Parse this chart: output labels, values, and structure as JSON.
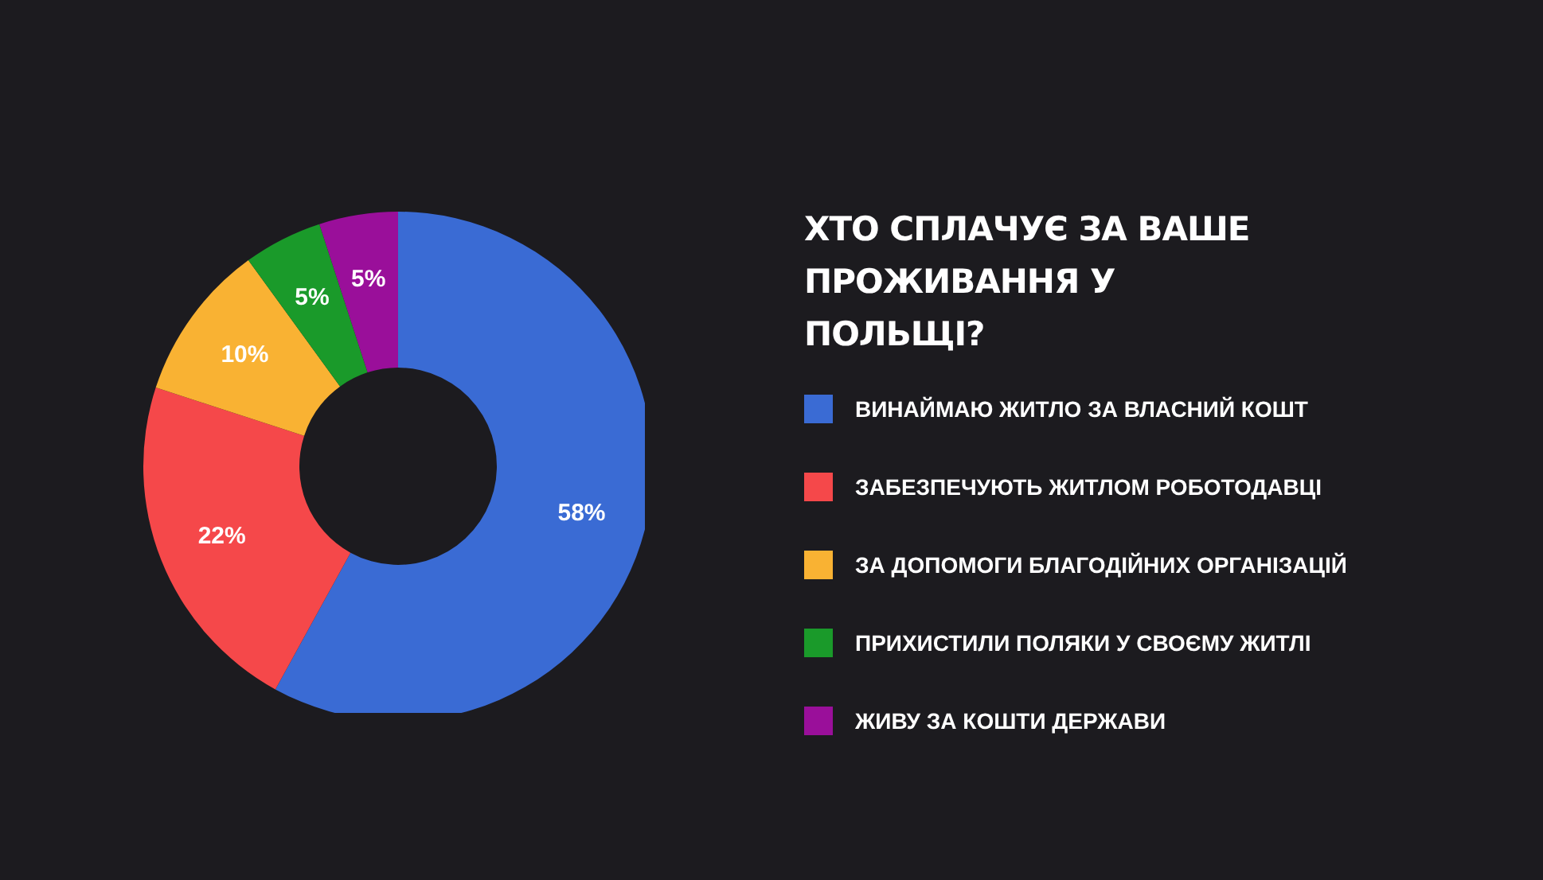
{
  "chart_data": {
    "type": "donut",
    "title": "ХТО СПЛАЧУЄ ЗА ВАШЕ ПРОЖИВАННЯ У ПОЛЬЩІ?",
    "categories": [
      "ВИНАЙМАЮ ЖИТЛО ЗА ВЛАСНИЙ КОШТ",
      "ЗАБЕЗПЕЧУЮТЬ ЖИТЛОМ РОБОТОДАВЦІ",
      "ЗА ДОПОМОГИ БЛАГОДІЙНИХ ОРГАНІЗАЦІЙ",
      "ПРИХИСТИЛИ ПОЛЯКИ У СВОЄМУ ЖИТЛІ",
      "ЖИВУ ЗА КОШТИ ДЕРЖАВИ"
    ],
    "values": [
      58,
      22,
      10,
      5,
      5
    ],
    "value_labels": [
      "58%",
      "22%",
      "10%",
      "5%",
      "5%"
    ],
    "colors": [
      "#3a6bd4",
      "#f5484a",
      "#f9b233",
      "#1a9a2a",
      "#9a0f9a"
    ],
    "legend": "right"
  }
}
